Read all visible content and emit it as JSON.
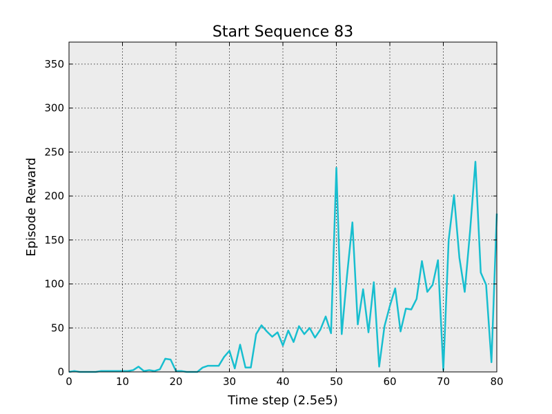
{
  "chart_data": {
    "type": "line",
    "title": "Start Sequence 83",
    "xlabel": "Time step (2.5e5)",
    "ylabel": "Episode Reward",
    "xlim": [
      0,
      80
    ],
    "ylim": [
      0,
      375
    ],
    "xticks": [
      0,
      10,
      20,
      30,
      40,
      50,
      60,
      70,
      80
    ],
    "yticks": [
      0,
      50,
      100,
      150,
      200,
      250,
      300,
      350
    ],
    "grid": true,
    "legend": "none",
    "series": [
      {
        "color": "#17becf",
        "x": [
          0,
          1,
          2,
          3,
          4,
          5,
          6,
          7,
          8,
          9,
          10,
          11,
          12,
          13,
          14,
          15,
          16,
          17,
          18,
          19,
          20,
          21,
          22,
          23,
          24,
          25,
          26,
          27,
          28,
          29,
          30,
          31,
          32,
          33,
          34,
          35,
          36,
          37,
          38,
          39,
          40,
          41,
          42,
          43,
          44,
          45,
          46,
          47,
          48,
          49,
          50,
          51,
          52,
          53,
          54,
          55,
          56,
          57,
          58,
          59,
          60,
          61,
          62,
          63,
          64,
          65,
          66,
          67,
          68,
          69,
          70,
          71,
          72,
          73,
          74,
          75,
          76,
          77,
          78,
          79,
          80
        ],
        "y": [
          0,
          1,
          0,
          0,
          0,
          0,
          1,
          1,
          1,
          1,
          1,
          1,
          2,
          6,
          1,
          2,
          1,
          3,
          15,
          14,
          1,
          1,
          0,
          0,
          0,
          5,
          7,
          7,
          7,
          17,
          24,
          4,
          31,
          5,
          5,
          43,
          53,
          46,
          40,
          45,
          30,
          47,
          34,
          52,
          43,
          50,
          39,
          48,
          63,
          44,
          232,
          43,
          110,
          170,
          54,
          94,
          45,
          102,
          6,
          52,
          75,
          95,
          46,
          72,
          71,
          83,
          126,
          91,
          99,
          127,
          2,
          150,
          201,
          130,
          91,
          160,
          239,
          113,
          99,
          11,
          180
        ]
      }
    ]
  }
}
